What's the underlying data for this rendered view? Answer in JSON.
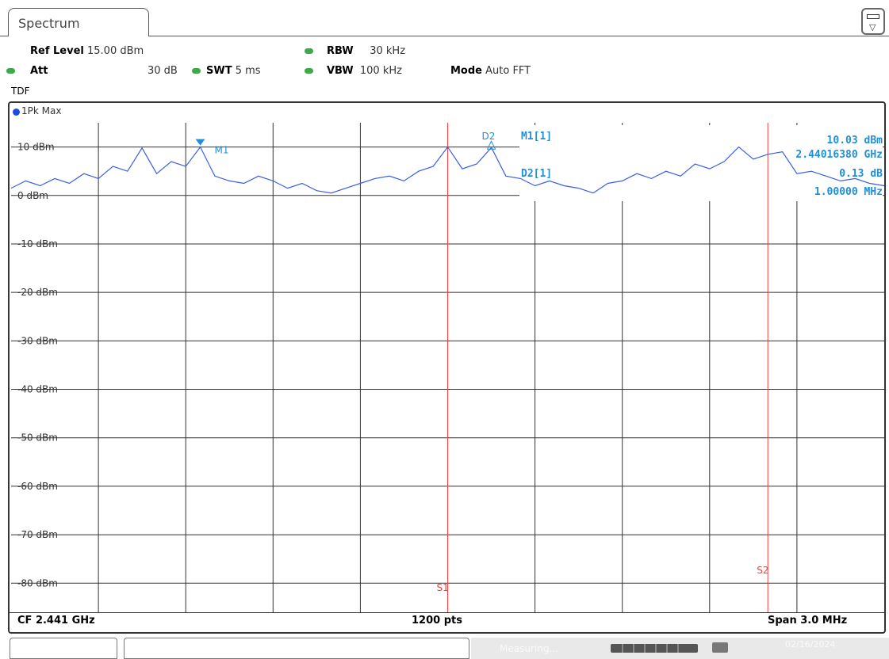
{
  "tab": {
    "label": "Spectrum"
  },
  "params": {
    "ref_level": {
      "label": "Ref Level",
      "value": "15.00 dBm"
    },
    "att": {
      "label": "Att",
      "value": "30 dB"
    },
    "swt": {
      "label": "SWT",
      "value": "5 ms"
    },
    "rbw": {
      "label": "RBW",
      "value": "30 kHz"
    },
    "vbw": {
      "label": "VBW",
      "value": "100 kHz"
    },
    "mode": {
      "label": "Mode",
      "value": "Auto FFT"
    },
    "tdf": "TDF"
  },
  "trace": {
    "label": "1Pk Max",
    "color": "#1d4de0"
  },
  "markers": {
    "m1_label": "M1",
    "d2_label": "D2",
    "m1_readout_label": "M1[1]",
    "m1_level": "10.03 dBm",
    "m1_freq": "2.44016380 GHz",
    "d2_readout_label": "D2[1]",
    "d2_level": "0.13 dB",
    "d2_freq": "1.00000 MHz",
    "s1_label": "S1",
    "s2_label": "S2"
  },
  "footer": {
    "cf": "CF 2.441 GHz",
    "pts": "1200 pts",
    "span": "Span 3.0 MHz"
  },
  "statusbar": {
    "measuring": "Measuring...",
    "date": "02/16/2024"
  },
  "colors": {
    "trace": "#3a5fe0",
    "marker": "#1f8fd8",
    "line": "#ff3b3b",
    "grid": "#333333",
    "status_ok": "#3fa84a"
  },
  "chart_data": {
    "type": "line",
    "title": "",
    "xlabel": "",
    "ylabel": "",
    "y_tick_labels": [
      "10 dBm",
      "0 dBm",
      "-10 dBm",
      "-20 dBm",
      "-30 dBm",
      "-40 dBm",
      "-50 dBm",
      "-60 dBm",
      "-70 dBm",
      "-80 dBm"
    ],
    "y_ticks": [
      10,
      0,
      -10,
      -20,
      -30,
      -40,
      -50,
      -60,
      -70,
      -80
    ],
    "ylim": [
      -86,
      15
    ],
    "xlim": [
      2439.5,
      2442.5
    ],
    "x_unit": "MHz",
    "reference_lines_dbm": [
      10,
      0
    ],
    "vertical_lines_mhz": [
      2441.0,
      2442.1
    ],
    "series": [
      {
        "values_mhz": [
          2439.5,
          2439.55,
          2439.6,
          2439.65,
          2439.7,
          2439.75,
          2439.8,
          2439.85,
          2439.9,
          2439.95,
          2440.0,
          2440.05,
          2440.1,
          2440.15,
          2440.2,
          2440.25,
          2440.3,
          2440.35,
          2440.4,
          2440.45,
          2440.5,
          2440.55,
          2440.6,
          2440.65,
          2440.7,
          2440.75,
          2440.8,
          2440.85,
          2440.9,
          2440.95,
          2441.0,
          2441.05,
          2441.1,
          2441.15,
          2441.2,
          2441.25,
          2441.3,
          2441.35,
          2441.4,
          2441.45,
          2441.5,
          2441.55,
          2441.6,
          2441.65,
          2441.7,
          2441.75,
          2441.8,
          2441.85,
          2441.9,
          2441.95,
          2442.0,
          2442.05,
          2442.1,
          2442.15,
          2442.2,
          2442.25,
          2442.3,
          2442.35,
          2442.4,
          2442.45,
          2442.5
        ],
        "values_dbm": [
          1.5,
          3.0,
          2.0,
          3.5,
          2.5,
          4.5,
          3.5,
          6.0,
          5.0,
          9.8,
          4.5,
          7.0,
          6.0,
          10.0,
          4.0,
          3.0,
          2.5,
          4.0,
          3.0,
          1.5,
          2.5,
          1.0,
          0.5,
          1.5,
          2.5,
          3.5,
          4.0,
          3.0,
          5.0,
          6.0,
          10.0,
          5.5,
          6.5,
          9.9,
          4.0,
          3.5,
          2.0,
          3.0,
          2.0,
          1.5,
          0.5,
          2.5,
          3.0,
          4.5,
          3.5,
          5.0,
          4.0,
          6.5,
          5.5,
          7.0,
          10.0,
          7.5,
          8.5,
          9.0,
          4.5,
          5.0,
          4.0,
          3.0,
          3.5,
          2.5,
          2.0
        ]
      }
    ]
  }
}
